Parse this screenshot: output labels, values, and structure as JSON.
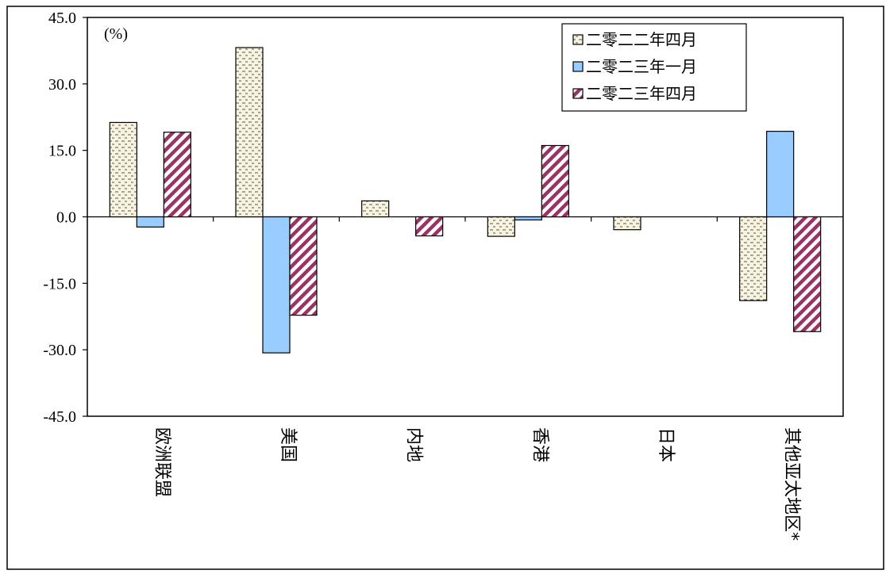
{
  "chart_data": {
    "type": "bar",
    "unit_label": "(%)",
    "categories": [
      "欧洲联盟",
      "美国",
      "内地",
      "香港",
      "日本",
      "其他亚太地区*"
    ],
    "series": [
      {
        "name": "二零二二年四月",
        "values": [
          21.3,
          38.2,
          3.6,
          -4.4,
          -2.9,
          -18.9
        ],
        "pattern": "dots",
        "color": "#f7f3df"
      },
      {
        "name": "二零二三年一月",
        "values": [
          -2.3,
          -30.7,
          null,
          -0.7,
          null,
          19.3
        ],
        "pattern": "solid",
        "color": "#99ccff"
      },
      {
        "name": "二零二三年四月",
        "values": [
          19.1,
          -22.2,
          -4.3,
          16.1,
          null,
          -25.9
        ],
        "pattern": "diagonal",
        "color": "#993366"
      }
    ],
    "ylim": [
      -45,
      45
    ],
    "yticks": [
      "45.0",
      "30.0",
      "15.0",
      "0.0",
      "-15.0",
      "-30.0",
      "-45.0"
    ],
    "ytick_values": [
      45,
      30,
      15,
      0,
      -15,
      -30,
      -45
    ],
    "legend_position": "top-right",
    "grid": false
  }
}
